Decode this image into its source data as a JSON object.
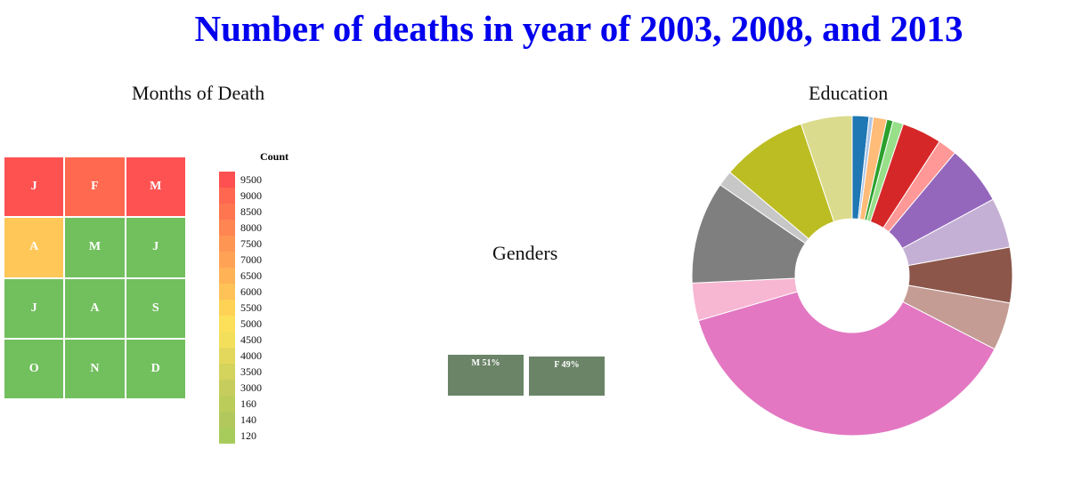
{
  "title": "Number of deaths in year of 2003, 2008, and 2013",
  "colors": {
    "title": "#0000ee",
    "gender_bar": "#6b8468"
  },
  "chart_data": [
    {
      "type": "heatmap",
      "title": "Months of Death",
      "cells": [
        {
          "label": "J",
          "color": "#fe5251"
        },
        {
          "label": "F",
          "color": "#ff6950"
        },
        {
          "label": "M",
          "color": "#fe5252"
        },
        {
          "label": "A",
          "color": "#ffc758"
        },
        {
          "label": "M",
          "color": "#72bf5e"
        },
        {
          "label": "J",
          "color": "#72bf5e"
        },
        {
          "label": "J",
          "color": "#72bf5e"
        },
        {
          "label": "A",
          "color": "#72bf5e"
        },
        {
          "label": "S",
          "color": "#72bf5e"
        },
        {
          "label": "O",
          "color": "#72bf5e"
        },
        {
          "label": "N",
          "color": "#72bf5e"
        },
        {
          "label": "D",
          "color": "#72bf5e"
        }
      ],
      "legend": {
        "title": "Count",
        "items": [
          {
            "label": "9500",
            "color": "#fe5050"
          },
          {
            "label": "9000",
            "color": "#ff6750"
          },
          {
            "label": "8500",
            "color": "#ff7550"
          },
          {
            "label": "8000",
            "color": "#ff8552"
          },
          {
            "label": "7500",
            "color": "#ff9553"
          },
          {
            "label": "7000",
            "color": "#ffa255"
          },
          {
            "label": "6500",
            "color": "#ffb256"
          },
          {
            "label": "6000",
            "color": "#ffc257"
          },
          {
            "label": "5500",
            "color": "#ffd255"
          },
          {
            "label": "5000",
            "color": "#fde05a"
          },
          {
            "label": "4500",
            "color": "#f4df5b"
          },
          {
            "label": "4000",
            "color": "#e4d85c"
          },
          {
            "label": "3500",
            "color": "#d4d35c"
          },
          {
            "label": "3000",
            "color": "#c6cd5c"
          },
          {
            "label": "160",
            "color": "#bccc5b"
          },
          {
            "label": "140",
            "color": "#b2c85c"
          },
          {
            "label": "120",
            "color": "#a8cc5c"
          }
        ]
      }
    },
    {
      "type": "bar",
      "title": "Genders",
      "categories": [
        "M",
        "F"
      ],
      "values": [
        51,
        49
      ],
      "labels": [
        "M 51%",
        "F 49%"
      ]
    },
    {
      "type": "pie",
      "title": "Education",
      "slices": [
        {
          "value": 1.6,
          "color": "#1f77b4"
        },
        {
          "value": 0.4,
          "color": "#aec7e8"
        },
        {
          "value": 1.3,
          "color": "#ffbb78"
        },
        {
          "value": 0.6,
          "color": "#2ca02c"
        },
        {
          "value": 1.0,
          "color": "#98df8a"
        },
        {
          "value": 3.8,
          "color": "#d62728"
        },
        {
          "value": 1.8,
          "color": "#ff9896"
        },
        {
          "value": 5.7,
          "color": "#9467bd"
        },
        {
          "value": 4.8,
          "color": "#c5b0d5"
        },
        {
          "value": 5.3,
          "color": "#8c564b"
        },
        {
          "value": 4.6,
          "color": "#c49c94"
        },
        {
          "value": 35.9,
          "color": "#e377c2"
        },
        {
          "value": 3.6,
          "color": "#f7b6d2"
        },
        {
          "value": 9.8,
          "color": "#7f7f7f"
        },
        {
          "value": 1.5,
          "color": "#c7c7c7"
        },
        {
          "value": 8.2,
          "color": "#bcbd22"
        },
        {
          "value": 4.9,
          "color": "#dbdb8d"
        }
      ]
    }
  ]
}
